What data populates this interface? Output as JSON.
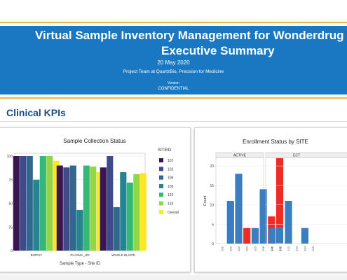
{
  "header": {
    "title_line1": "Virtual Sample Inventory Management for Wonderdrug",
    "title_line2": "Executive Summary",
    "date": "20 May 2020",
    "team": "Project Team at QuartzBio, Precision for Medicine",
    "version_label": "Version",
    "confidential": "CONFIDENTIAL"
  },
  "section": {
    "title": "Clinical KPIs"
  },
  "colors": {
    "banner": "#1a78c2",
    "accent_line": "#e8b64a",
    "section_title": "#1c4d82"
  },
  "chart_data": [
    {
      "type": "bar",
      "title": "Sample Collection Status",
      "xlabel": "Sample Type - Site ID",
      "ylabel": "",
      "ylim": [
        0,
        100
      ],
      "yticks": [
        "0",
        "25",
        "50",
        "75",
        "100"
      ],
      "categories": [
        "BIOPSY",
        "PLASMA_HD",
        "WHOLE BLOOD"
      ],
      "legend": {
        "title": "SITEID",
        "position": "right"
      },
      "series": [
        {
          "name": "101",
          "color": "#3b1552",
          "values": [
            100,
            90,
            88
          ]
        },
        {
          "name": "102",
          "color": "#3e4a89",
          "values": [
            100,
            88,
            100
          ]
        },
        {
          "name": "109",
          "color": "#31688e",
          "values": [
            100,
            90,
            46
          ]
        },
        {
          "name": "105",
          "color": "#26838f",
          "values": [
            75,
            43,
            83
          ]
        },
        {
          "name": "122",
          "color": "#35b779",
          "values": [
            100,
            90,
            72
          ]
        },
        {
          "name": "133",
          "color": "#8fd744",
          "values": [
            100,
            89,
            81
          ]
        },
        {
          "name": "Overall",
          "color": "#fde725",
          "values": [
            95,
            83,
            82
          ]
        }
      ]
    },
    {
      "type": "bar",
      "title": "Enrollment Status by SITE",
      "xlabel": "",
      "ylabel": "Count",
      "ylim": [
        0,
        22
      ],
      "yticks": [
        "0",
        "5",
        "10",
        "15",
        "20"
      ],
      "panels": [
        {
          "label": "ACTIVE",
          "categories": [
            "101",
            "102",
            "103",
            "104",
            "105",
            "106",
            "122",
            "133"
          ],
          "series": [
            {
              "name": "",
              "color": "#3a7ebf",
              "values": [
                0,
                11,
                18,
                0,
                4,
                14,
                0,
                4
              ]
            },
            {
              "name": "",
              "color": "#ee2b24",
              "values": [
                0,
                0,
                0,
                4,
                0,
                0,
                7,
                18
              ]
            }
          ]
        },
        {
          "label": "ECT",
          "categories": [
            "101",
            "102",
            "122",
            "133",
            "104",
            "109"
          ],
          "series": [
            {
              "name": "",
              "color": "#3a7ebf",
              "values": [
                4,
                0,
                11,
                0,
                4,
                0
              ]
            },
            {
              "name": "",
              "color": "#ee2b24",
              "values": [
                0,
                0,
                0,
                0,
                0,
                0
              ]
            }
          ]
        }
      ]
    }
  ]
}
